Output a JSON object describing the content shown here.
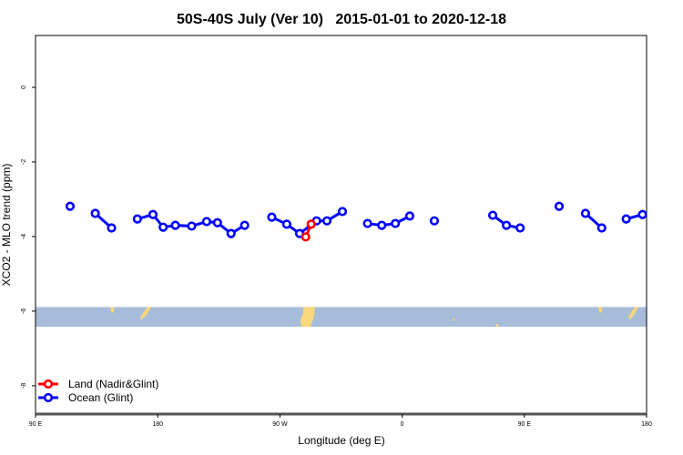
{
  "chart_data": {
    "type": "line",
    "title": "50S-40S July (Ver 10)   2015-01-01 to 2020-12-18",
    "xlabel": "Longitude (deg E)",
    "ylabel": "XCO2 - MLO trend (ppm)",
    "xlim": [
      90,
      540
    ],
    "ylim": [
      -8.76,
      1.39
    ],
    "x_ticks": [
      {
        "value": 90,
        "label": "90 E"
      },
      {
        "value": 180,
        "label": "180"
      },
      {
        "value": 270,
        "label": "90 W"
      },
      {
        "value": 360,
        "label": "0"
      },
      {
        "value": 450,
        "label": "90 E"
      },
      {
        "value": 540,
        "label": "180"
      }
    ],
    "y_ticks": [
      {
        "value": 0,
        "label": "0"
      },
      {
        "value": -2,
        "label": "-2"
      },
      {
        "value": -4,
        "label": "-4"
      },
      {
        "value": -6,
        "label": "-6"
      },
      {
        "value": -8,
        "label": "-8"
      }
    ],
    "grid": false,
    "legend_position": "bottom-left",
    "map_band": {
      "y_range": [
        -6.42,
        -5.89
      ],
      "ocean_color": "#a7bcd9",
      "land_color": "#f9d77a"
    },
    "series": [
      {
        "name": "Land (Nadir&Glint)",
        "color": "#ff0000",
        "segments": [
          [
            [
              289,
              -4.01
            ],
            [
              293,
              -3.67
            ]
          ]
        ]
      },
      {
        "name": "Ocean (Glint)",
        "color": "#0000ff",
        "segments": [
          [
            [
              115.5,
              -3.19
            ]
          ],
          [
            [
              134,
              -3.38
            ],
            [
              146,
              -3.77
            ]
          ],
          [
            [
              165,
              -3.53
            ],
            [
              176.5,
              -3.41
            ],
            [
              184,
              -3.75
            ],
            [
              193,
              -3.7
            ],
            [
              205,
              -3.72
            ],
            [
              216,
              -3.6
            ],
            [
              224,
              -3.63
            ],
            [
              234,
              -3.92
            ],
            [
              244,
              -3.7
            ]
          ],
          [
            [
              264,
              -3.48
            ],
            [
              275,
              -3.67
            ],
            [
              284.5,
              -3.92
            ],
            [
              297,
              -3.58
            ],
            [
              304.6,
              -3.58
            ],
            [
              316,
              -3.33
            ]
          ],
          [
            [
              334.5,
              -3.65
            ],
            [
              345,
              -3.7
            ],
            [
              355,
              -3.65
            ],
            [
              365.6,
              -3.45
            ]
          ],
          [
            [
              383.7,
              -3.58
            ]
          ],
          [
            [
              426.7,
              -3.43
            ],
            [
              436.8,
              -3.7
            ],
            [
              446.9,
              -3.77
            ]
          ],
          [
            [
              475.6,
              -3.19
            ]
          ],
          [
            [
              495,
              -3.38
            ],
            [
              507,
              -3.77
            ]
          ],
          [
            [
              525,
              -3.53
            ],
            [
              537,
              -3.41
            ]
          ]
        ]
      }
    ]
  }
}
